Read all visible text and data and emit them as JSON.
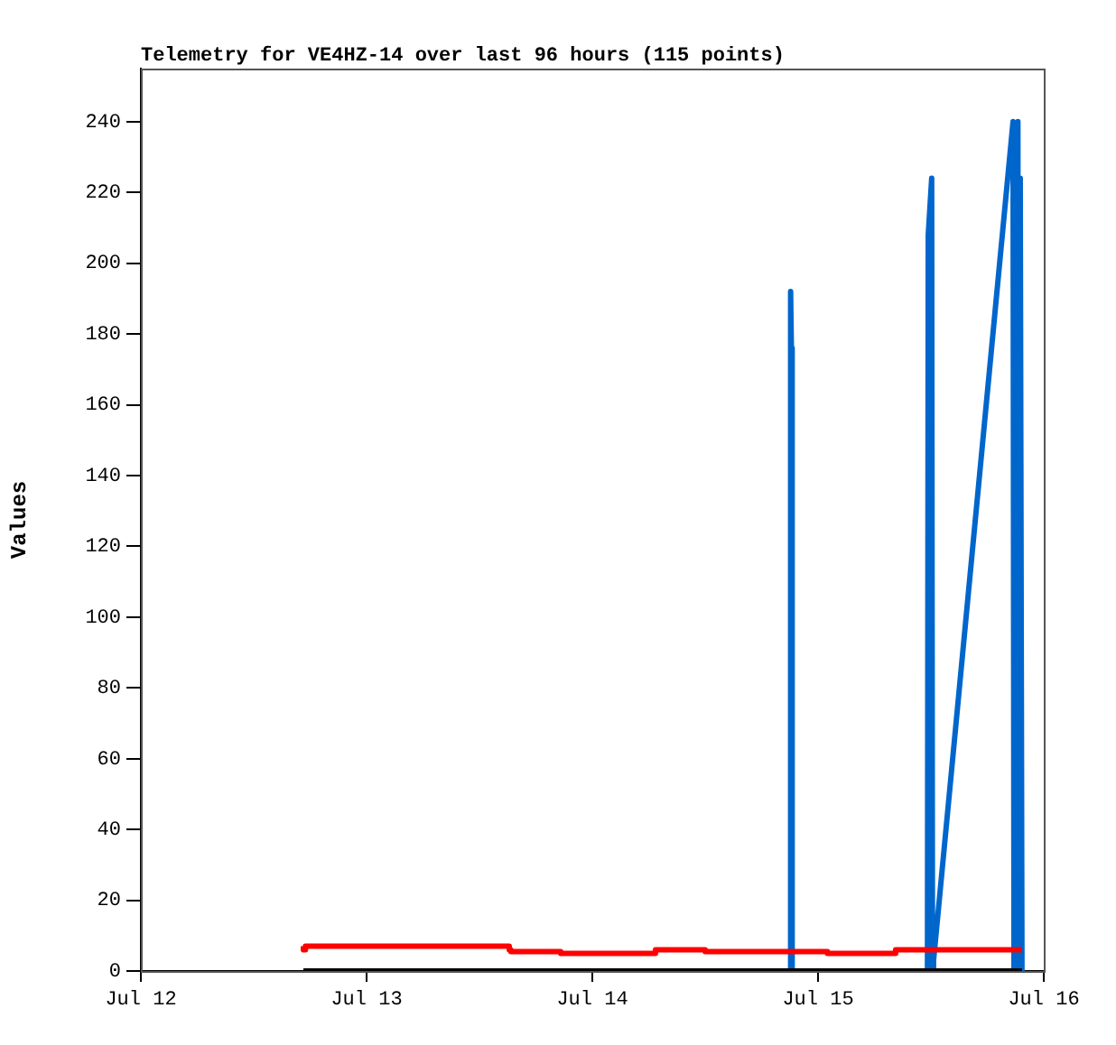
{
  "chart_data": {
    "type": "line",
    "title": "Telemetry for VE4HZ-14 over last 96 hours (115 points)",
    "ylabel": "Values",
    "xlim": [
      "--07-12",
      "--07-16"
    ],
    "xticks": [
      {
        "value": "--07-12",
        "label": "Jul 12"
      },
      {
        "value": "--07-13",
        "label": "Jul 13"
      },
      {
        "value": "--07-14",
        "label": "Jul 14"
      },
      {
        "value": "--07-15",
        "label": "Jul 15"
      },
      {
        "value": "--07-16",
        "label": "Jul 16"
      }
    ],
    "ylim": [
      0,
      255
    ],
    "yticks": [
      0,
      20,
      40,
      60,
      80,
      100,
      120,
      140,
      160,
      180,
      200,
      220,
      240
    ],
    "grid": false,
    "legend": false,
    "marker": "none",
    "series": [
      {
        "color": "#000000",
        "x": [
          "--07-12T17:17",
          "--07-15T21:41"
        ],
        "values": [
          0,
          0
        ]
      },
      {
        "type": "step",
        "color": "#ff0000",
        "x": [
          "--07-12T17:17",
          "--07-12T17:30",
          "--07-13T15:10",
          "--07-13T15:20",
          "--07-13T20:38",
          "--07-14T06:43",
          "--07-14T12:00",
          "--07-15T01:00",
          "--07-15T08:15",
          "--07-15T12:17",
          "--07-15T21:41"
        ],
        "values": [
          7,
          6,
          7,
          6,
          5.5,
          5,
          6,
          5.5,
          5,
          6,
          6
        ]
      },
      {
        "color": "#0066cc",
        "x": [
          "--07-14T21:00",
          "--07-14T21:05",
          "--07-14T21:10",
          "--07-14T21:15",
          "--07-15T11:38",
          "--07-15T11:43",
          "--07-15T12:05",
          "--07-15T12:10",
          "--07-15T12:17",
          "--07-15T20:44",
          "--07-15T20:50",
          "--07-15T21:07",
          "--07-15T21:15",
          "--07-15T21:20",
          "--07-15T21:30",
          "--07-15T21:41"
        ],
        "values": [
          0,
          192,
          176,
          0,
          0,
          208,
          224,
          0,
          3,
          240,
          0,
          208,
          240,
          0,
          224,
          0
        ]
      }
    ]
  }
}
